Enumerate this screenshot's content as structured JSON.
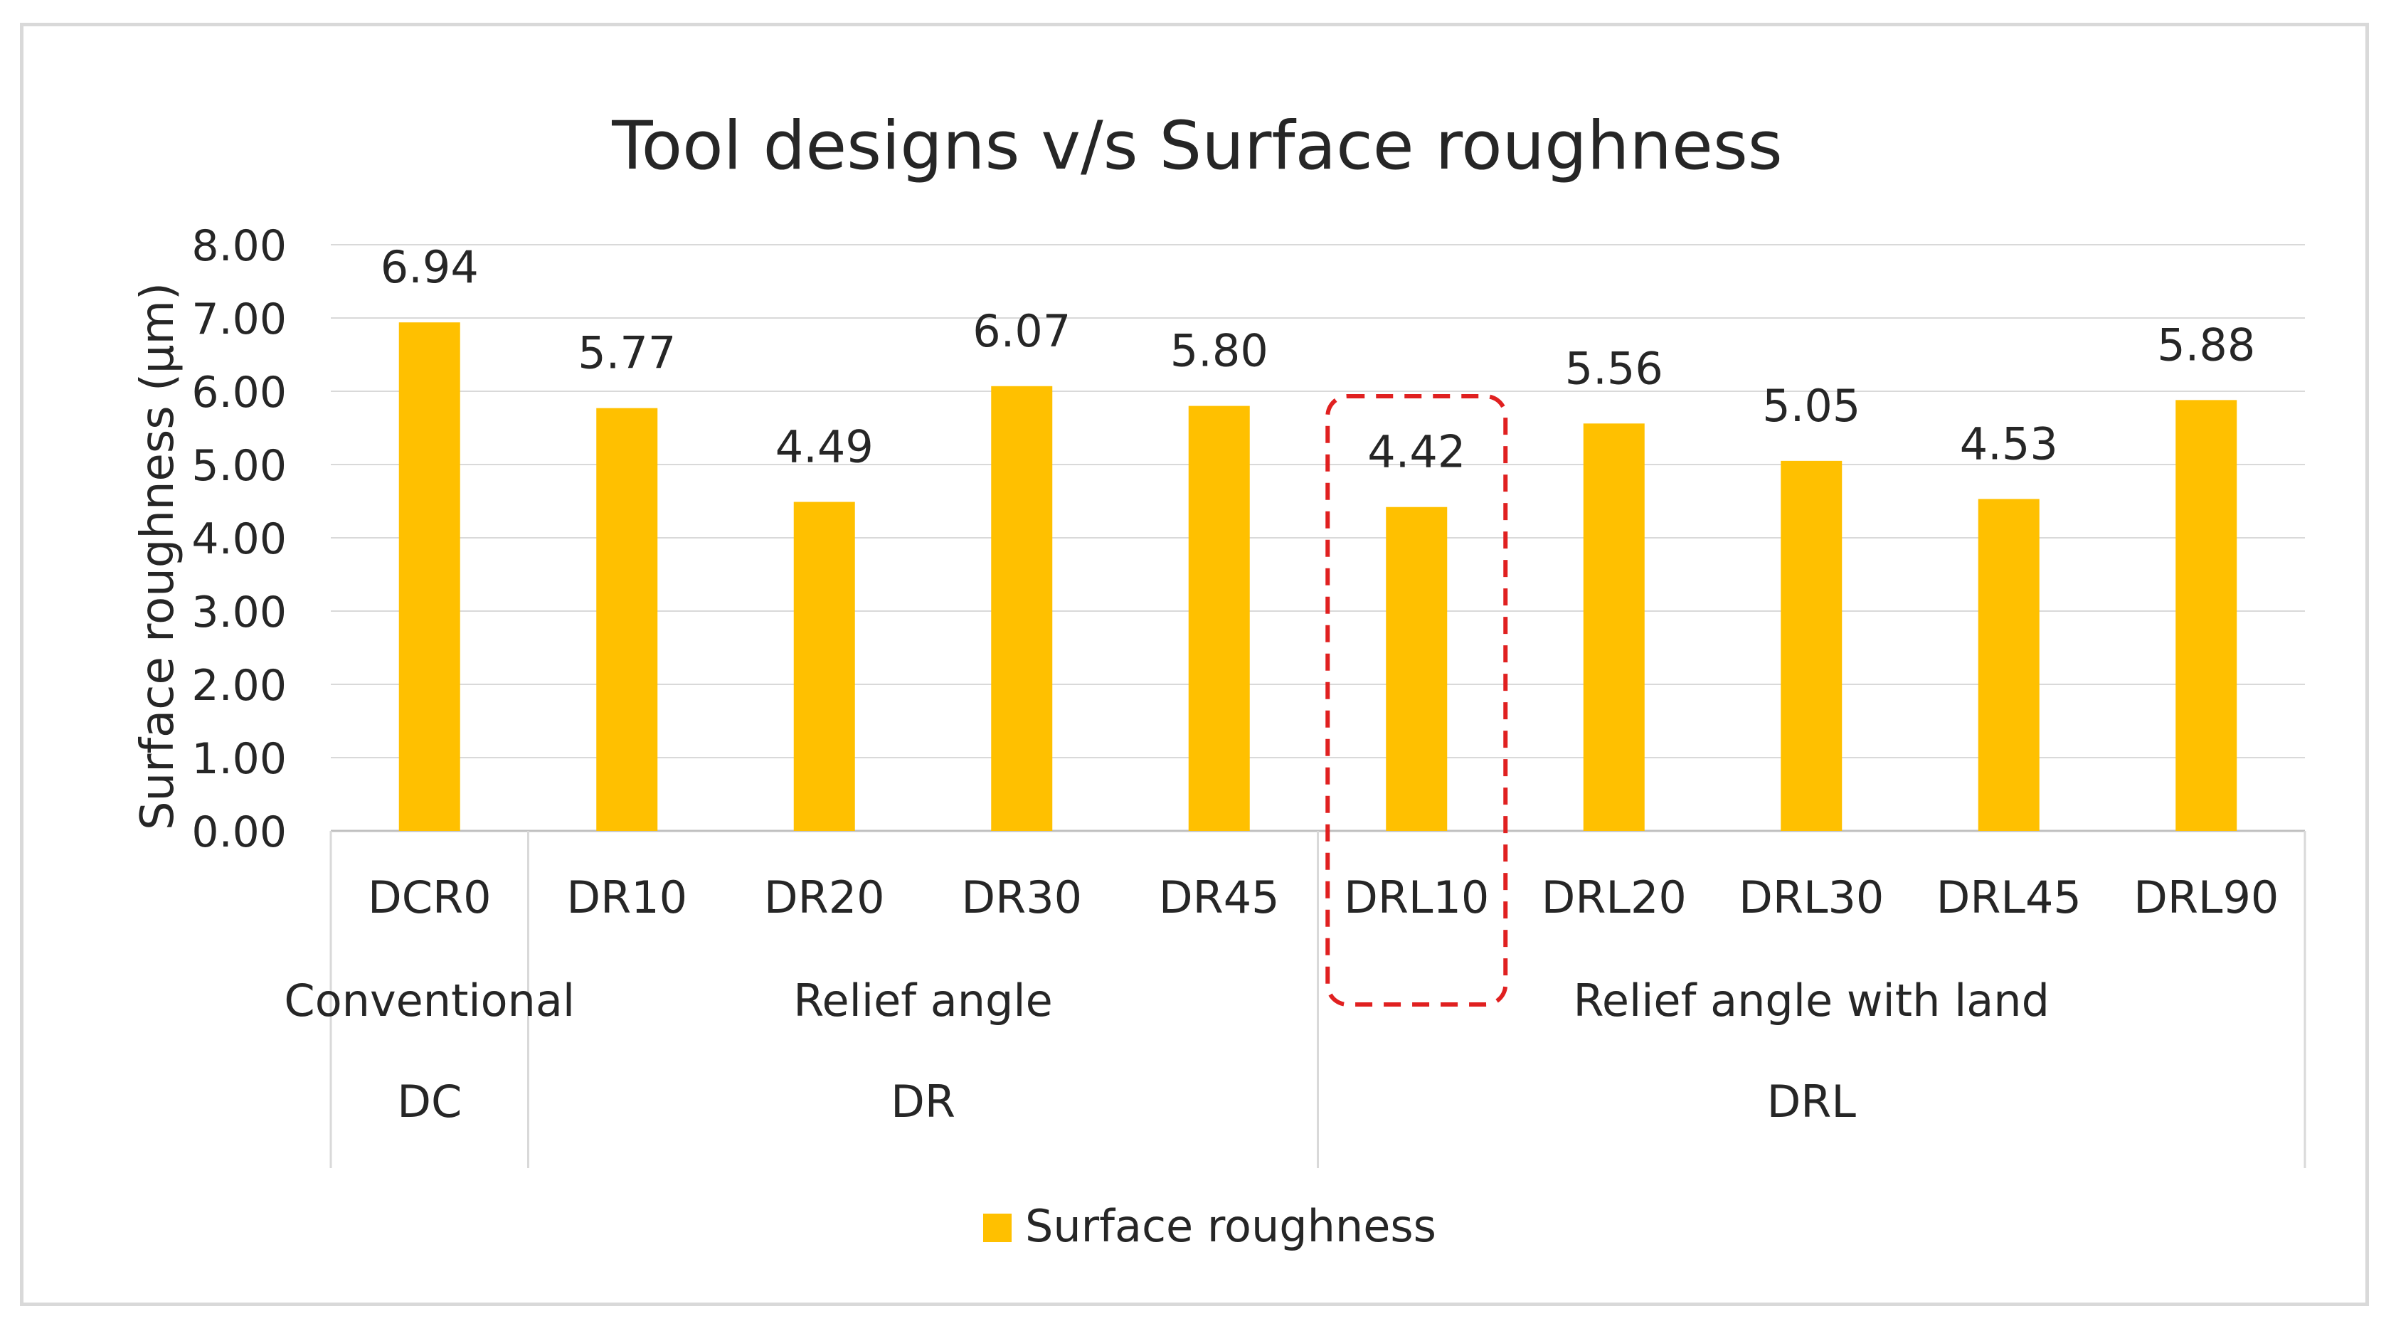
{
  "chart_data": {
    "type": "bar",
    "title": "Tool designs v/s Surface roughness",
    "ylabel": "Surface roughness (µm)",
    "xlabel": "",
    "ylim": [
      0,
      8
    ],
    "y_tick_step": 1,
    "y_tick_labels": [
      "0.00",
      "1.00",
      "2.00",
      "3.00",
      "4.00",
      "5.00",
      "6.00",
      "7.00",
      "8.00"
    ],
    "categories": [
      "DCR0",
      "DR10",
      "DR20",
      "DR30",
      "DR45",
      "DRL10",
      "DRL20",
      "DRL30",
      "DRL45",
      "DRL90"
    ],
    "series": [
      {
        "name": "Surface roughness",
        "color": "#ffc000",
        "values": [
          6.94,
          5.77,
          4.49,
          6.07,
          5.8,
          4.42,
          5.56,
          5.05,
          4.53,
          5.88
        ],
        "value_labels": [
          "6.94",
          "5.77",
          "4.49",
          "6.07",
          "5.80",
          "4.42",
          "5.56",
          "5.05",
          "4.53",
          "5.88"
        ]
      }
    ],
    "groups": [
      {
        "description": "Conventional",
        "code": "DC",
        "categories": [
          "DCR0"
        ]
      },
      {
        "description": "Relief angle",
        "code": "DR",
        "categories": [
          "DR10",
          "DR20",
          "DR30",
          "DR45"
        ]
      },
      {
        "description": "Relief angle with land",
        "code": "DRL",
        "categories": [
          "DRL10",
          "DRL20",
          "DRL30",
          "DRL45",
          "DRL90"
        ]
      }
    ],
    "highlight": {
      "category": "DRL10",
      "style": "dashed",
      "color": "#e02020"
    },
    "gridlines": true,
    "legend_position": "bottom"
  }
}
